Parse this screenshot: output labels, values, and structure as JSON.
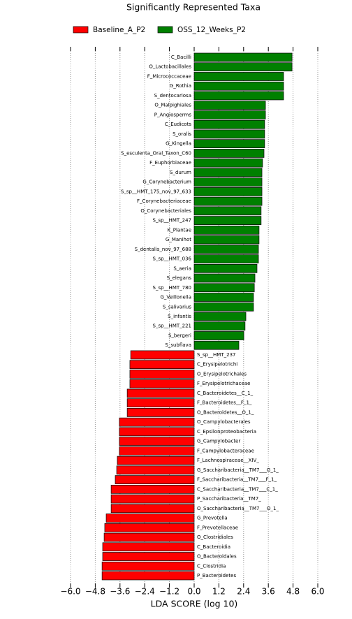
{
  "chart_data": {
    "type": "barh",
    "title": "Significantly Represented Taxa",
    "xlabel": "LDA SCORE (log 10)",
    "categories": [
      "C_Bacilli",
      "O_Lactobacillales",
      "F_Micrococcaceae",
      "G_Rothia",
      "S_dentocariosa",
      "O_Malpighiales",
      "P_Angiosperms",
      "C_Eudicots",
      "S_oralis",
      "G_Kingella",
      "S_esculenta_Oral_Taxon_C60",
      "F_Euphorbiaceae",
      "S_durum",
      "G_Corynebacterium",
      "S_sp__HMT_175_nov_97_633",
      "F_Corynebacteriaceae",
      "O_Corynebacteriales",
      "S_sp__HMT_247",
      "K_Plantae",
      "G_Manihot",
      "S_dentalis_nov_97_688",
      "S_sp__HMT_036",
      "S_aeria",
      "S_elegans",
      "S_sp__HMT_780",
      "G_Veillonella",
      "S_salivarius",
      "S_infantis",
      "S_sp__HMT_221",
      "S_bergeri",
      "S_subflava",
      "S_sp__HMT_237",
      "C_Erysipelotrichi",
      "O_Erysipelotrichales",
      "F_Erysipelotrichaceae",
      "C_Bacteroidetes__C_1_",
      "F_Bacteroidetes__F_1_",
      "O_Bacteroidetes__O_1_",
      "O_Campylobacterales",
      "C_Epsilonproteobacteria",
      "G_Campylobacter",
      "F_Campylobacteraceae",
      "F_Lachnospiraceae__XIV_",
      "G_Saccharibacteria__TM7___G_1_",
      "F_Saccharibacteria__TM7___F_1_",
      "C_Saccharibacteria__TM7___C_1_",
      "P_Saccharibacteria__TM7_",
      "O_Saccharibacteria__TM7___O_1_",
      "G_Prevotella",
      "F_Prevotellaceae",
      "O_Clostridiales",
      "C_Bacteroidia",
      "O_Bacteroidales",
      "C_Clostridia",
      "P_Bacteroidetes"
    ],
    "series": [
      {
        "name": "Baseline_A_P2",
        "color": "#ff0000",
        "values": [
          null,
          null,
          null,
          null,
          null,
          null,
          null,
          null,
          null,
          null,
          null,
          null,
          null,
          null,
          null,
          null,
          null,
          null,
          null,
          null,
          null,
          null,
          null,
          null,
          null,
          null,
          null,
          null,
          null,
          null,
          null,
          -3.08,
          -3.12,
          -3.12,
          -3.12,
          -3.25,
          -3.25,
          -3.25,
          -3.63,
          -3.63,
          -3.63,
          -3.63,
          -3.73,
          -3.76,
          -3.83,
          -4.03,
          -4.03,
          -4.03,
          -4.27,
          -4.34,
          -4.37,
          -4.44,
          -4.44,
          -4.47,
          -4.47
        ]
      },
      {
        "name": "OSS_12_Weeks_P2",
        "color": "#008000",
        "values": [
          4.75,
          4.75,
          4.34,
          4.34,
          4.34,
          3.46,
          3.46,
          3.42,
          3.42,
          3.42,
          3.39,
          3.32,
          3.29,
          3.29,
          3.29,
          3.29,
          3.25,
          3.25,
          3.15,
          3.15,
          3.12,
          3.12,
          3.05,
          2.95,
          2.92,
          2.88,
          2.88,
          2.51,
          2.47,
          2.41,
          2.17,
          null,
          null,
          null,
          null,
          null,
          null,
          null,
          null,
          null,
          null,
          null,
          null,
          null,
          null,
          null,
          null,
          null,
          null,
          null,
          null,
          null,
          null,
          null,
          null
        ]
      }
    ],
    "xlim": [
      -6.0,
      6.0
    ],
    "xticks": [
      {
        "value": -6.0,
        "label": "−6.0"
      },
      {
        "value": -4.8,
        "label": "−4.8"
      },
      {
        "value": -3.6,
        "label": "−3.6"
      },
      {
        "value": -2.4,
        "label": "−2.4"
      },
      {
        "value": -1.2,
        "label": "−1.2"
      },
      {
        "value": 0.0,
        "label": "0.0"
      },
      1.2,
      2.4,
      3.6,
      4.8,
      {
        "value": 6.0,
        "label": "6.0"
      }
    ],
    "grid": true,
    "legend": "top"
  }
}
